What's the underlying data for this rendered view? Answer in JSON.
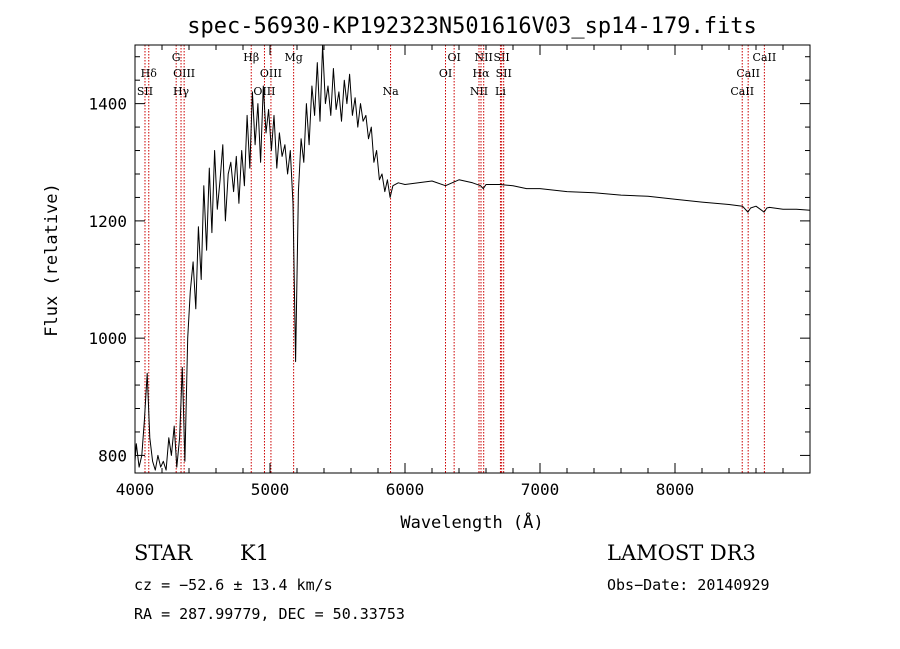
{
  "chart_data": {
    "type": "line",
    "title": "spec-56930-KP192323N501616V03_sp14-179.fits",
    "xlabel": "Wavelength (Å)",
    "ylabel": "Flux (relative)",
    "xlim": [
      4000,
      9000
    ],
    "ylim": [
      770,
      1500
    ],
    "xticks": [
      4000,
      5000,
      6000,
      7000,
      8000
    ],
    "yticks": [
      800,
      1000,
      1200,
      1400
    ],
    "series": [
      {
        "name": "flux",
        "x": [
          3990,
          4010,
          4030,
          4050,
          4070,
          4090,
          4110,
          4130,
          4150,
          4170,
          4190,
          4210,
          4230,
          4250,
          4270,
          4290,
          4310,
          4330,
          4350,
          4370,
          4390,
          4410,
          4430,
          4450,
          4470,
          4490,
          4510,
          4530,
          4550,
          4570,
          4590,
          4610,
          4630,
          4650,
          4670,
          4690,
          4710,
          4730,
          4750,
          4770,
          4790,
          4810,
          4830,
          4850,
          4870,
          4890,
          4910,
          4930,
          4950,
          4970,
          4990,
          5010,
          5030,
          5050,
          5070,
          5090,
          5110,
          5130,
          5150,
          5170,
          5190,
          5210,
          5230,
          5250,
          5270,
          5290,
          5310,
          5330,
          5350,
          5370,
          5390,
          5410,
          5430,
          5450,
          5470,
          5490,
          5510,
          5530,
          5550,
          5570,
          5590,
          5610,
          5630,
          5650,
          5670,
          5690,
          5710,
          5730,
          5750,
          5770,
          5790,
          5810,
          5830,
          5850,
          5870,
          5890,
          5910,
          5950,
          6000,
          6100,
          6200,
          6300,
          6400,
          6500,
          6560,
          6580,
          6600,
          6700,
          6800,
          6900,
          7000,
          7200,
          7400,
          7600,
          7800,
          8000,
          8200,
          8400,
          8500,
          8540,
          8560,
          8600,
          8660,
          8680,
          8700,
          8800,
          8900,
          9000
        ],
        "values": [
          790,
          820,
          780,
          800,
          860,
          940,
          830,
          790,
          775,
          800,
          780,
          790,
          775,
          830,
          800,
          850,
          780,
          830,
          950,
          790,
          1000,
          1080,
          1130,
          1050,
          1190,
          1100,
          1260,
          1150,
          1290,
          1180,
          1320,
          1220,
          1270,
          1330,
          1200,
          1280,
          1300,
          1250,
          1310,
          1230,
          1320,
          1260,
          1380,
          1290,
          1420,
          1330,
          1400,
          1300,
          1430,
          1350,
          1390,
          1320,
          1380,
          1290,
          1350,
          1310,
          1330,
          1280,
          1320,
          1230,
          960,
          1250,
          1340,
          1300,
          1400,
          1330,
          1430,
          1380,
          1470,
          1370,
          1500,
          1400,
          1430,
          1380,
          1460,
          1390,
          1420,
          1370,
          1440,
          1400,
          1450,
          1380,
          1410,
          1360,
          1400,
          1370,
          1380,
          1340,
          1360,
          1300,
          1320,
          1270,
          1280,
          1250,
          1270,
          1240,
          1260,
          1265,
          1262,
          1265,
          1268,
          1260,
          1270,
          1265,
          1260,
          1255,
          1262,
          1262,
          1260,
          1255,
          1255,
          1250,
          1248,
          1244,
          1242,
          1237,
          1232,
          1228,
          1225,
          1215,
          1222,
          1225,
          1215,
          1222,
          1223,
          1220,
          1220,
          1218
        ]
      }
    ],
    "spectral_lines": [
      {
        "label": "Hδ",
        "wavelength": 4102,
        "row": 2
      },
      {
        "label": "SII",
        "wavelength": 4074,
        "row": 3
      },
      {
        "label": "G",
        "wavelength": 4305,
        "row": 1
      },
      {
        "label": "OIII",
        "wavelength": 4364,
        "row": 2
      },
      {
        "label": "Hγ",
        "wavelength": 4341,
        "row": 3
      },
      {
        "label": "Hβ",
        "wavelength": 4861,
        "row": 1
      },
      {
        "label": "OIII",
        "wavelength": 5007,
        "row": 2
      },
      {
        "label": "OIII",
        "wavelength": 4959,
        "row": 3
      },
      {
        "label": "Mg",
        "wavelength": 5175,
        "row": 1
      },
      {
        "label": "Na",
        "wavelength": 5893,
        "row": 3
      },
      {
        "label": "OI",
        "wavelength": 6364,
        "row": 1
      },
      {
        "label": "OI",
        "wavelength": 6300,
        "row": 2
      },
      {
        "label": "NII",
        "wavelength": 6583,
        "row": 1
      },
      {
        "label": "SII",
        "wavelength": 6716,
        "row": 1
      },
      {
        "label": "Hα",
        "wavelength": 6563,
        "row": 2
      },
      {
        "label": "SII",
        "wavelength": 6731,
        "row": 2
      },
      {
        "label": "NII",
        "wavelength": 6548,
        "row": 3
      },
      {
        "label": "Li",
        "wavelength": 6707,
        "row": 3
      },
      {
        "label": "CaII",
        "wavelength": 8662,
        "row": 1
      },
      {
        "label": "CaII",
        "wavelength": 8542,
        "row": 2
      },
      {
        "label": "CaII",
        "wavelength": 8498,
        "row": 3
      }
    ],
    "line_color": "#cc0000"
  },
  "info": {
    "class": "STAR",
    "subclass": "K1",
    "survey": "LAMOST DR3",
    "cz": "cz = −52.6 ± 13.4 km/s",
    "obs_date": "Obs−Date: 20140929",
    "radec": "RA = 287.99779, DEC =  50.33753"
  }
}
